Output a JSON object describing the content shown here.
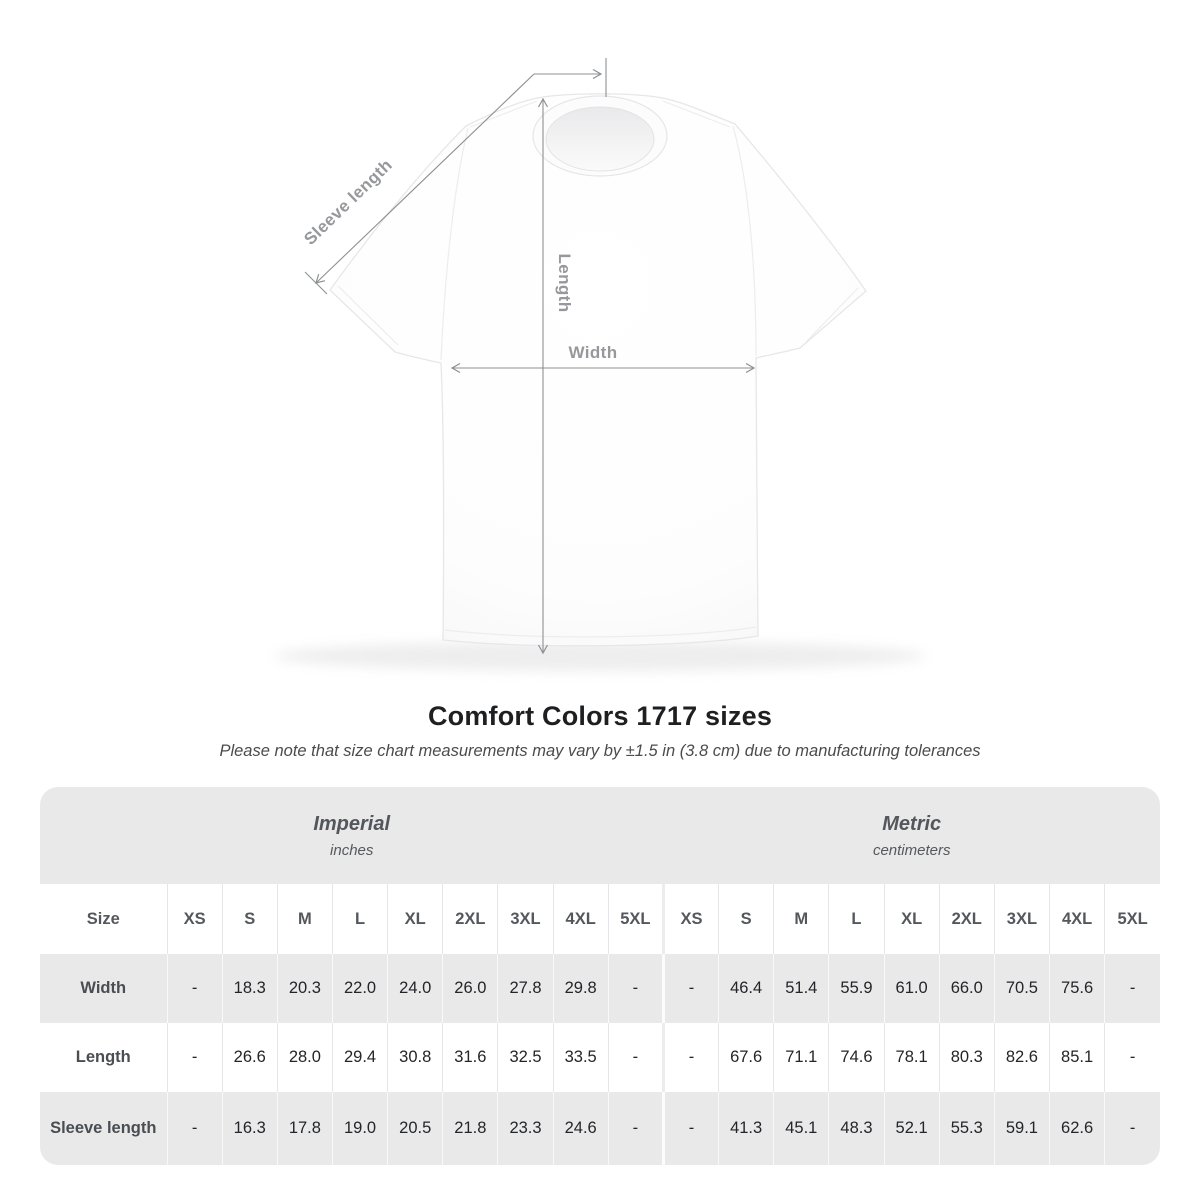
{
  "diagram": {
    "labels": {
      "sleeve_length": "Sleeve length",
      "length": "Length",
      "width": "Width"
    }
  },
  "chart_data": {
    "type": "table",
    "title": "Comfort Colors 1717 sizes",
    "subtitle": "Please note that size chart measurements may vary by ±1.5 in (3.8 cm) due to manufacturing tolerances",
    "size_header_label": "Size",
    "column_groups": [
      {
        "label": "Imperial",
        "unit": "inches"
      },
      {
        "label": "Metric",
        "unit": "centimeters"
      }
    ],
    "sizes": [
      "XS",
      "S",
      "M",
      "L",
      "XL",
      "2XL",
      "3XL",
      "4XL",
      "5XL"
    ],
    "rows": [
      {
        "label": "Width",
        "imperial": [
          "-",
          "18.3",
          "20.3",
          "22.0",
          "24.0",
          "26.0",
          "27.8",
          "29.8",
          "-"
        ],
        "metric": [
          "-",
          "46.4",
          "51.4",
          "55.9",
          "61.0",
          "66.0",
          "70.5",
          "75.6",
          "-"
        ]
      },
      {
        "label": "Length",
        "imperial": [
          "-",
          "26.6",
          "28.0",
          "29.4",
          "30.8",
          "31.6",
          "32.5",
          "33.5",
          "-"
        ],
        "metric": [
          "-",
          "67.6",
          "71.1",
          "74.6",
          "78.1",
          "80.3",
          "82.6",
          "85.1",
          "-"
        ]
      },
      {
        "label": "Sleeve length",
        "imperial": [
          "-",
          "16.3",
          "17.8",
          "19.0",
          "20.5",
          "21.8",
          "23.3",
          "24.6",
          "-"
        ],
        "metric": [
          "-",
          "41.3",
          "45.1",
          "48.3",
          "52.1",
          "55.3",
          "59.1",
          "62.6",
          "-"
        ]
      }
    ]
  },
  "colors": {
    "table_band": "#e9e9ea",
    "annotation_gray": "#8d9093",
    "title_text": "#1e1f21"
  }
}
